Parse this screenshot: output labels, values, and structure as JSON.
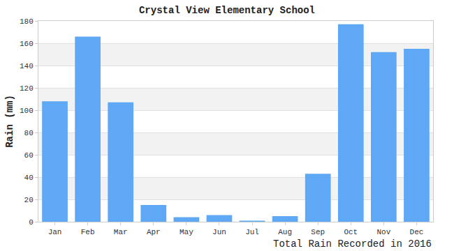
{
  "chart_data": {
    "type": "bar",
    "title": "Crystal View Elementary School",
    "y_label": "Rain (mm)",
    "x_label": "Total Rain Recorded in 2016",
    "categories": [
      "Jan",
      "Feb",
      "Mar",
      "Apr",
      "May",
      "Jun",
      "Jul",
      "Aug",
      "Sep",
      "Oct",
      "Nov",
      "Dec"
    ],
    "values": [
      108,
      166,
      107,
      15,
      4,
      6,
      1,
      5,
      43,
      177,
      152,
      155
    ],
    "color": "#5fa8f5",
    "ylim": [
      0,
      180
    ],
    "yticks": [
      0,
      20,
      40,
      60,
      80,
      100,
      120,
      140,
      160,
      180
    ],
    "grid": true
  }
}
